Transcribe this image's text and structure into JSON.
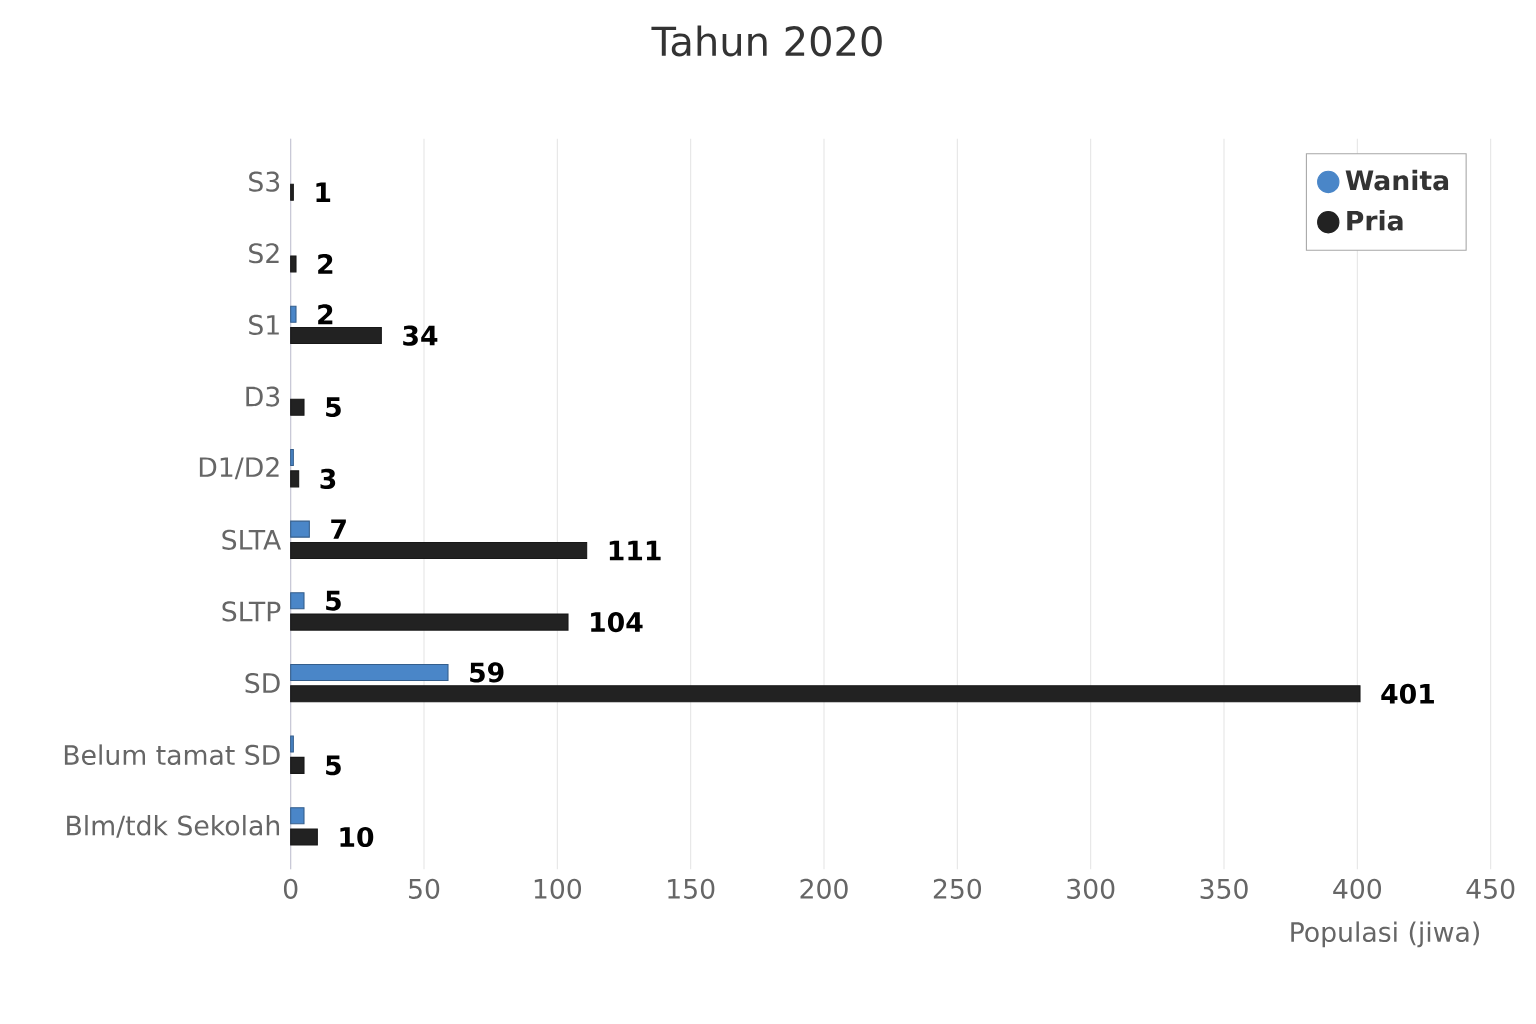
{
  "chart_data": {
    "type": "bar",
    "orientation": "horizontal",
    "title": "Tahun 2020",
    "xlabel": "Populasi (jiwa)",
    "categories": [
      "S3",
      "S2",
      "S1",
      "D3",
      "D1/D2",
      "SLTA",
      "SLTP",
      "SD",
      "Belum tamat SD",
      "Blm/tdk Sekolah"
    ],
    "series": [
      {
        "name": "Wanita",
        "color": "#4a86c8",
        "values": [
          null,
          null,
          2,
          null,
          1,
          7,
          5,
          59,
          1,
          5
        ],
        "value_labels": [
          null,
          null,
          "2",
          null,
          null,
          "7",
          "5",
          "59",
          null,
          null
        ]
      },
      {
        "name": "Pria",
        "color": "#222222",
        "values": [
          1,
          2,
          34,
          5,
          3,
          111,
          104,
          401,
          5,
          10
        ],
        "value_labels": [
          "1",
          "2",
          "34",
          "5",
          "3",
          "111",
          "104",
          "401",
          "5",
          "10"
        ]
      }
    ],
    "xlim": [
      0,
      450
    ],
    "xticks": [
      0,
      50,
      100,
      150,
      200,
      250,
      300,
      350,
      400,
      450
    ],
    "grid": "x",
    "legend": "top right",
    "marker": "circle"
  }
}
